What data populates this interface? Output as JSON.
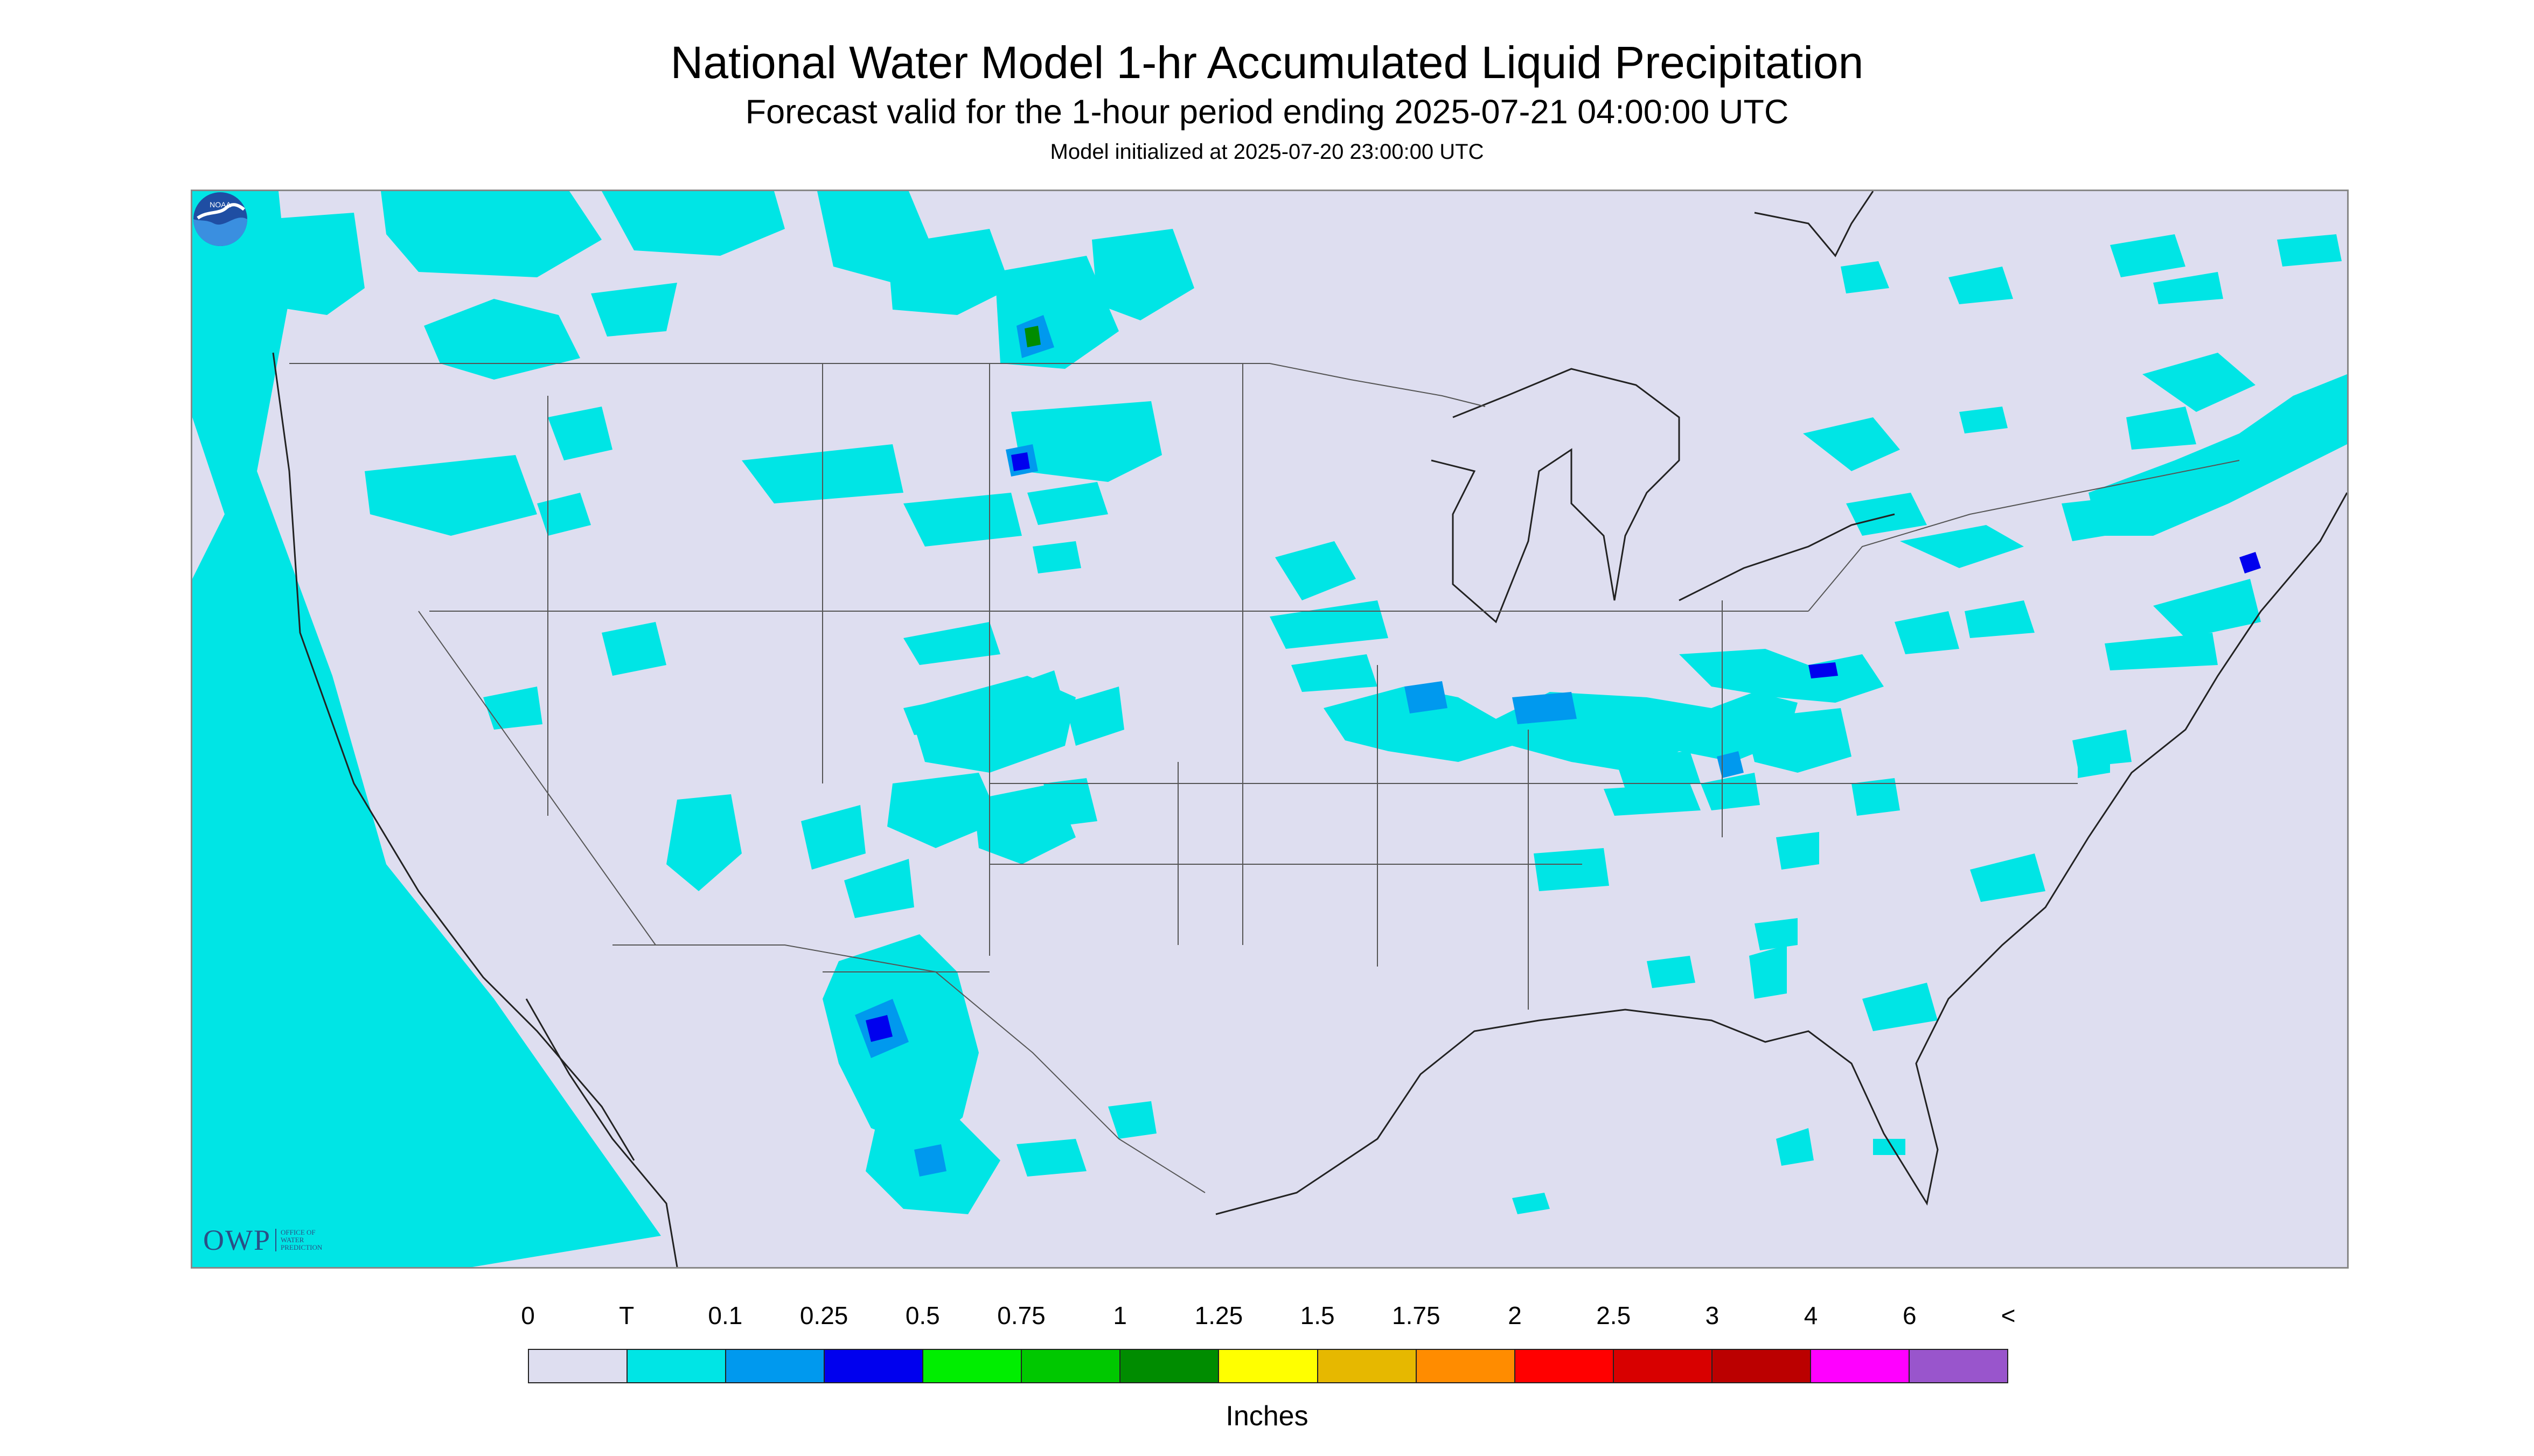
{
  "header": {
    "title": "National Water Model 1-hr Accumulated Liquid Precipitation",
    "subtitle": "Forecast valid for the 1-hour period ending 2025-07-21 04:00:00 UTC",
    "init_line": "Model initialized at 2025-07-20 23:00:00 UTC"
  },
  "logos": {
    "owp_text": "OWP",
    "owp_subtext": "OFFICE OF WATER PREDICTION",
    "noaa_text": "NOAA"
  },
  "colors": {
    "no_data": "#dedef0",
    "trace": "#00e5e5",
    "land_lines": "#222222",
    "state_lines": "#555555"
  },
  "legend": {
    "labels": [
      "0",
      "T",
      "0.1",
      "0.25",
      "0.5",
      "0.75",
      "1",
      "1.25",
      "1.5",
      "1.75",
      "2",
      "2.5",
      "3",
      "4",
      "6",
      "<"
    ],
    "colors": [
      "#dedef0",
      "#00e5e5",
      "#0099ee",
      "#0000ee",
      "#00ee00",
      "#00c800",
      "#008c00",
      "#ffff00",
      "#e6b800",
      "#ff8c00",
      "#ff0000",
      "#d80000",
      "#bb0000",
      "#ff00ff",
      "#9955cc"
    ],
    "units": "Inches"
  }
}
